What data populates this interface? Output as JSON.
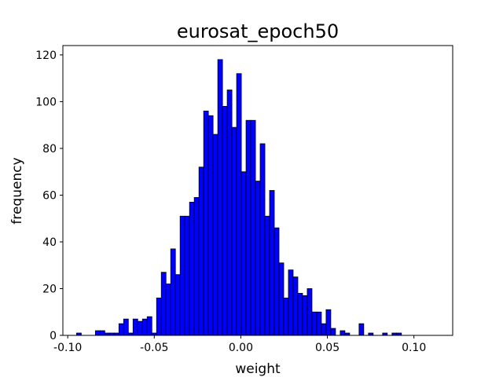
{
  "chart_data": {
    "type": "bar",
    "title": "eurosat_epoch50",
    "xlabel": "weight",
    "ylabel": "frequency",
    "xlim": [
      -0.1028,
      0.1224
    ],
    "ylim": [
      0,
      124
    ],
    "xticks": [
      -0.1,
      -0.05,
      0.0,
      0.05,
      0.1
    ],
    "xtick_labels": [
      "-0.10",
      "-0.05",
      "0.00",
      "0.05",
      "0.10"
    ],
    "yticks": [
      0,
      20,
      40,
      60,
      80,
      100,
      120
    ],
    "ytick_labels": [
      "0",
      "20",
      "40",
      "60",
      "80",
      "100",
      "120"
    ],
    "grid": false,
    "bar_color": "#0000ff",
    "edge_color": "#000000",
    "bin_width": 0.00272,
    "bin_start": -0.0949,
    "counts": [
      1,
      0,
      0,
      0,
      2,
      2,
      1,
      1,
      1,
      5,
      7,
      1,
      7,
      6,
      7,
      8,
      1,
      16,
      27,
      22,
      37,
      26,
      51,
      51,
      57,
      59,
      72,
      96,
      94,
      86,
      118,
      98,
      105,
      89,
      112,
      70,
      92,
      92,
      66,
      82,
      51,
      62,
      46,
      31,
      16,
      28,
      25,
      18,
      17,
      20,
      10,
      10,
      5,
      11,
      3,
      0,
      2,
      1,
      0,
      0,
      5,
      0,
      1,
      0,
      0,
      1,
      0,
      1,
      1
    ]
  }
}
